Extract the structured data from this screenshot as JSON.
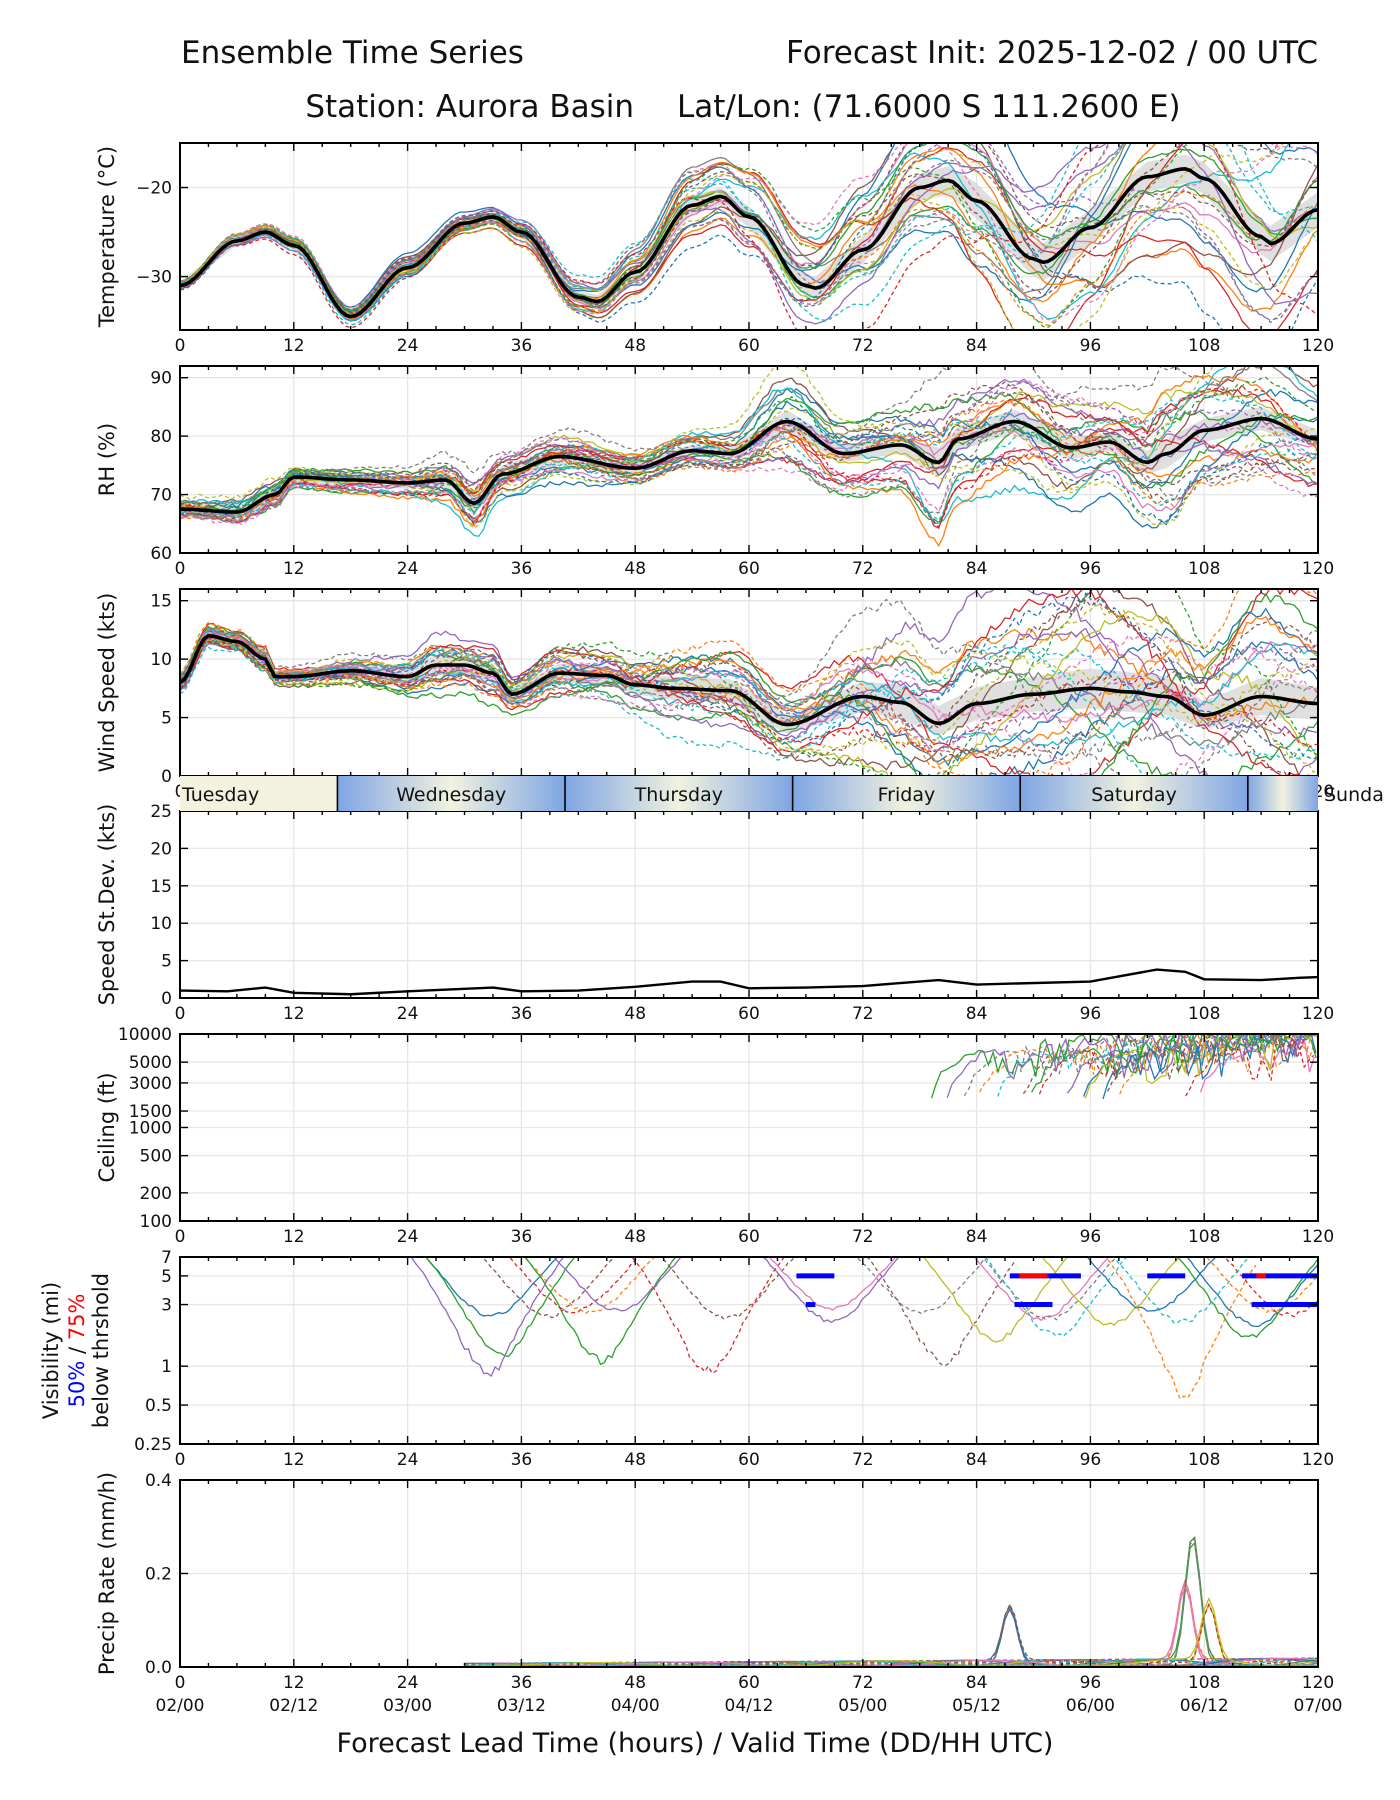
{
  "header": {
    "title_left": "Ensemble Time Series",
    "title_right": "Forecast Init: 2025-12-02 / 00 UTC",
    "station": "Station: Aurora Basin",
    "latlon": "Lat/Lon: (71.6000 S 111.2600 E)"
  },
  "x_axis": {
    "ticks": [
      0,
      12,
      24,
      36,
      48,
      60,
      72,
      84,
      96,
      108,
      120
    ],
    "tick_labels": [
      "0",
      "12",
      "24",
      "36",
      "48",
      "60",
      "72",
      "84",
      "96",
      "108",
      "120"
    ],
    "valid_labels": [
      "02/00",
      "02/12",
      "03/00",
      "03/12",
      "04/00",
      "04/12",
      "05/00",
      "05/12",
      "06/00",
      "06/12",
      "07/00"
    ],
    "xlabel": "Forecast Lead Time (hours) / Valid Time (DD/HH UTC)",
    "xlim": [
      0,
      120
    ]
  },
  "day_strip": {
    "days": [
      {
        "label": "Tuesday",
        "start": 0,
        "end": 16.6
      },
      {
        "label": "Wednesday",
        "start": 16.6,
        "end": 40.6
      },
      {
        "label": "Thursday",
        "start": 40.6,
        "end": 64.6
      },
      {
        "label": "Friday",
        "start": 64.6,
        "end": 88.6
      },
      {
        "label": "Saturday",
        "start": 88.6,
        "end": 112.6
      },
      {
        "label": "Sunda",
        "start": 112.6,
        "end": 120
      }
    ],
    "day_color": "#f2f2df",
    "night_color": "#7ea5e4"
  },
  "colors": {
    "members": [
      "#1f77b4",
      "#ff7f0e",
      "#2ca02c",
      "#d62728",
      "#9467bd",
      "#8c564b",
      "#e377c2",
      "#7f7f7f",
      "#bcbd22",
      "#17becf"
    ],
    "mean": "#000000",
    "spread": "#d9d9d9",
    "prob50": "#0000ff",
    "prob75": "#ff0000",
    "grid": "#e6e6e6"
  },
  "chart_data": [
    {
      "id": "temperature",
      "type": "line",
      "ylabel": "Temperature (°C)",
      "ylim": [
        -36,
        -15
      ],
      "yticks": [
        -20,
        -30
      ],
      "ytick_labels": [
        "−20",
        "−30"
      ],
      "mean": {
        "name": "ensemble mean",
        "x": [
          0,
          6,
          9,
          12,
          18,
          24,
          30,
          33,
          36,
          42,
          44,
          48,
          54,
          57,
          60,
          66,
          67,
          72,
          78,
          81,
          84,
          90,
          91,
          96,
          102,
          106,
          108,
          114,
          115,
          120
        ],
        "y": [
          -31,
          -26,
          -25,
          -26.5,
          -34.5,
          -29,
          -24,
          -23.3,
          -25,
          -32.3,
          -32.8,
          -29.5,
          -22,
          -21,
          -23.3,
          -31,
          -31.3,
          -27,
          -20,
          -19.2,
          -21.5,
          -28,
          -28.4,
          -24.5,
          -18.8,
          -17.9,
          -19,
          -25.5,
          -26.3,
          -22.5
        ]
      },
      "spread": {
        "lower": [
          -31.4,
          -26.5,
          -25.5,
          -27,
          -35,
          -29.6,
          -24.5,
          -23.8,
          -25.6,
          -33,
          -33.5,
          -30.3,
          -23,
          -22,
          -24.5,
          -32.3,
          -32.6,
          -28.5,
          -21.5,
          -20.8,
          -23.5,
          -30,
          -30.5,
          -26.5,
          -20.5,
          -19.5,
          -20.8,
          -27.5,
          -28.3,
          -24.5
        ],
        "upper": [
          -30.6,
          -25.5,
          -24.5,
          -26,
          -34,
          -28.4,
          -23.5,
          -22.8,
          -24.4,
          -31.6,
          -32.1,
          -28.7,
          -21,
          -20,
          -22.1,
          -29.7,
          -30,
          -25.5,
          -18.5,
          -17.6,
          -19.5,
          -26,
          -26.3,
          -22.5,
          -17.1,
          -16.3,
          -17.2,
          -23.5,
          -24.3,
          -20.5
        ]
      },
      "members_note": "30 ensemble members (solid and dashed)"
    },
    {
      "id": "rh",
      "type": "line",
      "ylabel": "RH (%)",
      "ylim": [
        60,
        92
      ],
      "yticks": [
        60,
        70,
        80,
        90
      ],
      "ytick_labels": [
        "60",
        "70",
        "80",
        "90"
      ],
      "mean": {
        "name": "ensemble mean",
        "x": [
          0,
          6,
          10,
          12,
          18,
          24,
          28,
          31,
          34,
          40,
          48,
          54,
          58,
          64,
          70,
          76,
          80,
          82,
          88,
          94,
          98,
          102,
          104,
          108,
          114,
          120
        ],
        "y": [
          67.5,
          67,
          70,
          73,
          72.5,
          72,
          72.5,
          68.5,
          73.5,
          76.5,
          74.5,
          77.5,
          77,
          82.5,
          77,
          78.5,
          75.5,
          79.5,
          82.5,
          78,
          79,
          75.5,
          77,
          81,
          83,
          79.5
        ]
      },
      "spread": {
        "lower": [
          66,
          65.5,
          68.5,
          72,
          71.5,
          71,
          71,
          66.5,
          72,
          75,
          73.5,
          76.5,
          76,
          80.5,
          75.5,
          77,
          73,
          77.5,
          80.5,
          76,
          77.5,
          73.5,
          74.5,
          79,
          81,
          78
        ],
        "upper": [
          69,
          68.5,
          71.5,
          74,
          73.5,
          73,
          74,
          70.5,
          75,
          78,
          75.5,
          78.5,
          78,
          84.5,
          78.5,
          80,
          78,
          81.5,
          84.5,
          80,
          80.5,
          77.5,
          79.5,
          83,
          85,
          81
        ]
      }
    },
    {
      "id": "wind",
      "type": "line",
      "ylabel": "Wind Speed (kts)",
      "ylim": [
        0,
        16
      ],
      "yticks": [
        0,
        5,
        10,
        15
      ],
      "ytick_labels": [
        "0",
        "5",
        "10",
        "15"
      ],
      "mean": {
        "name": "ensemble mean",
        "x": [
          0,
          3,
          6,
          9,
          10,
          12,
          18,
          24,
          27,
          30,
          33,
          35,
          40,
          45,
          48,
          52,
          58,
          64,
          72,
          76,
          80,
          84,
          90,
          96,
          100,
          104,
          108,
          114,
          120
        ],
        "y": [
          8,
          12,
          11.5,
          10,
          8.5,
          8.5,
          9,
          8.5,
          9.5,
          9.5,
          8.8,
          7,
          8.8,
          8.6,
          7.8,
          7.5,
          7.3,
          4.4,
          6.8,
          6.3,
          4.5,
          6.2,
          7,
          7.5,
          7.2,
          6.8,
          5.2,
          6.8,
          6.2
        ]
      },
      "spread": {
        "lower": [
          7.2,
          11.2,
          10.8,
          9.2,
          8,
          8,
          8.4,
          7.8,
          8.6,
          8.8,
          8,
          6.5,
          8,
          7.8,
          7,
          6.5,
          6.3,
          3.6,
          5.5,
          4.8,
          3.5,
          4.8,
          5.5,
          5.8,
          5.5,
          5.2,
          4,
          5.2,
          4.8
        ],
        "upper": [
          8.8,
          12.8,
          12.2,
          10.8,
          9,
          9,
          9.6,
          9.2,
          10.4,
          10.2,
          9.6,
          7.5,
          9.6,
          9.4,
          8.6,
          8.5,
          8.3,
          5.2,
          8.1,
          7.8,
          6,
          7.6,
          8.5,
          9.2,
          8.9,
          8.5,
          6.4,
          8.4,
          7.6
        ]
      }
    },
    {
      "id": "speed_stdev",
      "type": "line",
      "ylabel": "Speed St.Dev. (kts)",
      "ylim": [
        0,
        25
      ],
      "yticks": [
        0,
        5,
        10,
        15,
        20,
        25
      ],
      "ytick_labels": [
        "0",
        "5",
        "10",
        "15",
        "20",
        "25"
      ],
      "series": [
        {
          "name": "speed st.dev.",
          "x": [
            0,
            5,
            9,
            12,
            18,
            24,
            33,
            36,
            42,
            48,
            54,
            57,
            60,
            66,
            72,
            80,
            84,
            96,
            103,
            106,
            108,
            114,
            118,
            120
          ],
          "y": [
            1,
            0.9,
            1.4,
            0.7,
            0.5,
            0.9,
            1.4,
            0.9,
            1.0,
            1.5,
            2.2,
            2.2,
            1.3,
            1.4,
            1.6,
            2.4,
            1.8,
            2.2,
            3.8,
            3.5,
            2.5,
            2.4,
            2.7,
            2.8
          ]
        }
      ]
    },
    {
      "id": "ceiling",
      "type": "line",
      "scale": "log",
      "ylabel": "Ceiling (ft)",
      "ylim": [
        100,
        10000
      ],
      "yticks": [
        100,
        200,
        500,
        1000,
        1500,
        3000,
        5000,
        10000
      ],
      "ytick_labels": [
        "100",
        "200",
        "500",
        "1000",
        "1500",
        "3000",
        "5000",
        "10000"
      ],
      "note": "member ceilings dip to 2000–4000 ft between hours 80 and 120"
    },
    {
      "id": "visibility",
      "type": "line",
      "scale": "log",
      "ylabel_parts": [
        "Visibility (mi)",
        "50%",
        " / ",
        "75%",
        "below thrshold"
      ],
      "ylim": [
        0.25,
        7
      ],
      "yticks": [
        0.25,
        0.5,
        1,
        3,
        5,
        7
      ],
      "ytick_labels": [
        "0.25",
        "0.5",
        "1",
        "3",
        "5",
        "7"
      ],
      "threshold_50": [
        {
          "y": 5,
          "x": [
            65,
            69
          ]
        },
        {
          "y": 3,
          "x": [
            66,
            67
          ]
        },
        {
          "y": 5,
          "x": [
            87.5,
            95
          ]
        },
        {
          "y": 3,
          "x": [
            88,
            92
          ]
        },
        {
          "y": 5,
          "x": [
            102,
            106
          ]
        },
        {
          "y": 5,
          "x": [
            112,
            120
          ]
        },
        {
          "y": 3,
          "x": [
            113,
            120
          ]
        }
      ],
      "threshold_75": [
        {
          "y": 5,
          "x": [
            88.5,
            91.5
          ]
        },
        {
          "y": 5,
          "x": [
            113.5,
            114.5
          ]
        }
      ]
    },
    {
      "id": "precip",
      "type": "line",
      "ylabel": "Precip Rate (mm/h)",
      "ylim": [
        0,
        0.4
      ],
      "yticks": [
        0.0,
        0.2,
        0.4
      ],
      "ytick_labels": [
        "0.0",
        "0.2",
        "0.4"
      ],
      "peaks": [
        {
          "x": 87.5,
          "y": 0.12
        },
        {
          "x": 106,
          "y": 0.17
        },
        {
          "x": 106.8,
          "y": 0.27
        },
        {
          "x": 108.5,
          "y": 0.13
        }
      ]
    }
  ]
}
